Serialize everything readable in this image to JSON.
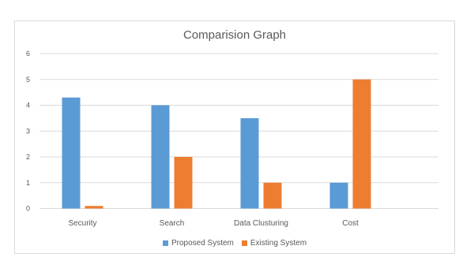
{
  "chart_data": {
    "type": "bar",
    "title": "Comparision Graph",
    "xlabel": "",
    "ylabel": "",
    "categories": [
      "Security",
      "Search",
      "Data Clusturing",
      "Cost"
    ],
    "series": [
      {
        "name": "Proposed System",
        "color": "#5b9bd5",
        "values": [
          4.3,
          4.0,
          3.5,
          1.0
        ]
      },
      {
        "name": "Existing System",
        "color": "#ed7d31",
        "values": [
          0.1,
          2.0,
          1.0,
          5.0
        ]
      }
    ],
    "ylim": [
      0,
      6
    ],
    "yticks": [
      0,
      1,
      2,
      3,
      4,
      5,
      6
    ],
    "grid": true,
    "legend": "bottom"
  }
}
